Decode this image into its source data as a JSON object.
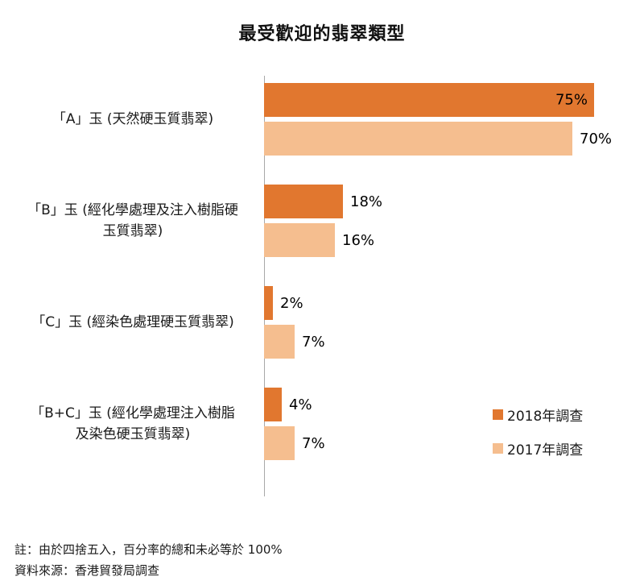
{
  "title": "最受歡迎的翡翠類型",
  "chart_data": {
    "type": "bar",
    "orientation": "horizontal",
    "categories": [
      "「A」玉 (天然硬玉質翡翠)",
      "「B」玉 (經化學處理及注入樹脂硬\n玉質翡翠)",
      "「C」玉 (經染色處理硬玉質翡翠)",
      "「B+C」玉 (經化學處理注入樹脂\n及染色硬玉質翡翠)"
    ],
    "series": [
      {
        "name": "2018年調查",
        "color": "#E1772F",
        "values": [
          75,
          18,
          2,
          4
        ]
      },
      {
        "name": "2017年調查",
        "color": "#F5BE8F",
        "values": [
          70,
          16,
          7,
          7
        ]
      }
    ],
    "value_suffix": "%",
    "xlim": [
      0,
      80
    ],
    "grid": false,
    "legend_position": "bottom-right"
  },
  "footer": {
    "note": "註：由於四捨五入，百分率的總和未必等於 100%",
    "source": "資料來源：香港貿發局調查"
  }
}
